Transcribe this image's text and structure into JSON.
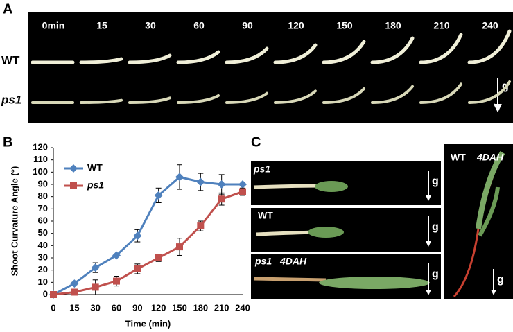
{
  "panel_labels": [
    "A",
    "B",
    "C"
  ],
  "panel_a": {
    "times": [
      "0min",
      "15",
      "30",
      "60",
      "90",
      "120",
      "150",
      "180",
      "210",
      "240"
    ],
    "rows": [
      "WT",
      "ps1"
    ],
    "gravity": "g"
  },
  "chart_data": {
    "type": "line",
    "x_label": "Time (min)",
    "y_label": "Shoot Curvature Angle (°)",
    "categories": [
      "0",
      "15",
      "30",
      "60",
      "90",
      "120",
      "150",
      "180",
      "210",
      "240"
    ],
    "series": [
      {
        "name": "WT",
        "color": "#4f81bd",
        "marker": "diamond",
        "values": [
          0,
          9,
          22,
          32,
          48,
          81,
          96,
          92,
          90,
          90
        ],
        "errors": [
          0,
          1,
          4,
          1,
          5,
          6,
          10,
          7,
          8,
          0
        ]
      },
      {
        "name": "ps1",
        "color": "#c0504d",
        "marker": "square",
        "values": [
          0,
          2,
          6,
          11,
          21,
          30,
          39,
          56,
          78,
          84
        ],
        "errors": [
          0,
          1,
          6,
          4,
          4,
          3,
          7,
          4,
          5,
          3
        ]
      }
    ],
    "ylim": [
      0,
      120
    ],
    "yticks": [
      0,
      10,
      20,
      30,
      40,
      50,
      60,
      70,
      80,
      90,
      100,
      110,
      120
    ],
    "legend": "upper-left"
  },
  "panel_c": {
    "images": [
      {
        "label": "ps1"
      },
      {
        "label": "WT"
      },
      {
        "label": "ps1",
        "stage": "4DAH"
      },
      {
        "label": "WT",
        "stage": "4DAH"
      }
    ],
    "gravity": "g"
  }
}
